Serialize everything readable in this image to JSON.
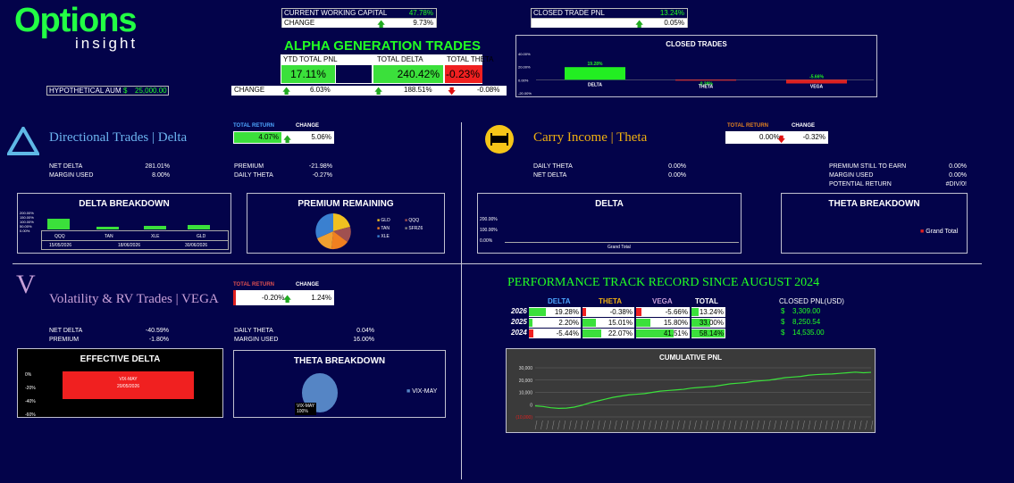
{
  "logo": {
    "main": "Options",
    "sub": "insight"
  },
  "hypothetical_aum": {
    "label": "HYPOTHETICAL AUM",
    "currency": "$",
    "value": "25,000.00"
  },
  "working_capital": {
    "label": "CURRENT WORKING CAPITAL",
    "value": "47.78%",
    "change_label": "CHANGE",
    "change": "9.73%"
  },
  "closed_trade_pnl": {
    "label": "CLOSED TRADE PNL",
    "value": "13.24%",
    "change": "0.05%"
  },
  "alpha": {
    "title": "ALPHA GENERATION TRADES",
    "headers": [
      "YTD TOTAL PNL",
      "TOTAL DELTA",
      "TOTAL THETA"
    ],
    "values": [
      "17.11%",
      "240.42%",
      "-0.23%"
    ],
    "change_label": "CHANGE",
    "changes": [
      "6.03%",
      "188.51%",
      "-0.08%"
    ]
  },
  "closed_trades_chart": {
    "title": "CLOSED TRADES",
    "yticks": [
      "40.00%",
      "20.00%",
      "0.00%",
      "-20.00%"
    ],
    "labels": [
      "DELTA",
      "THETA",
      "VEGA"
    ],
    "values_text": [
      "19.28%",
      "-0.38%",
      "-5.66%"
    ]
  },
  "delta_section": {
    "icon": "triangle-icon",
    "title": "Directional Trades | Delta",
    "total_return_label": "TOTAL RETURN",
    "total_return": "4.07%",
    "change_label": "CHANGE",
    "change": "5.06%",
    "stats_left": [
      [
        "NET DELTA",
        "281.01%"
      ],
      [
        "MARGIN USED",
        "8.00%"
      ]
    ],
    "stats_right": [
      [
        "PREMIUM",
        "-21.98%"
      ],
      [
        "DAILY THETA",
        "-0.27%"
      ]
    ],
    "breakdown": {
      "title": "DELTA BREAKDOWN",
      "yticks": [
        "200.00%",
        "150.00%",
        "100.00%",
        "50.00%",
        "0.00%"
      ],
      "bars": [
        "QQQ",
        "TAN",
        "XLE",
        "GLD"
      ],
      "dates": [
        "15/05/2026",
        "18/06/2026",
        "30/06/2026"
      ]
    },
    "premium": {
      "title": "PREMIUM REMAINING",
      "legend": [
        "GLD",
        "QQQ",
        "TAN",
        "SFRZ6",
        "XLE"
      ]
    }
  },
  "theta_section": {
    "title": "Carry Income | Theta",
    "total_return_label": "TOTAL RETURN",
    "total_return": "0.00%",
    "change_label": "CHANGE",
    "change": "-0.32%",
    "stats_left": [
      [
        "DAILY THETA",
        "0.00%"
      ],
      [
        "NET DELTA",
        "0.00%"
      ]
    ],
    "stats_right": [
      [
        "PREMIUM STILL TO EARN",
        "0.00%"
      ],
      [
        "MARGIN USED",
        "0.00%"
      ],
      [
        "POTENTIAL RETURN",
        "#DIV/0!"
      ]
    ],
    "delta_chart": {
      "title": "DELTA",
      "yticks": [
        "200.00%",
        "100.00%",
        "0.00%"
      ],
      "xlabel": "Grand Total"
    },
    "breakdown": {
      "title": "THETA BREAKDOWN",
      "legend": "Grand Total"
    }
  },
  "vega_section": {
    "icon_letter": "V",
    "title": "Volatility & RV Trades | VEGA",
    "total_return_label": "TOTAL RETURN",
    "total_return": "-0.20%",
    "change_label": "CHANGE",
    "change": "1.24%",
    "stats_left": [
      [
        "NET DELTA",
        "-40.59%"
      ],
      [
        "PREMIUM",
        "-1.80%"
      ]
    ],
    "stats_right": [
      [
        "DAILY THETA",
        "0.04%"
      ],
      [
        "MARGIN USED",
        "16.00%"
      ]
    ],
    "effective_delta": {
      "title": "EFFECTIVE DELTA",
      "yticks": [
        "0%",
        "-20%",
        "-40%",
        "-60%"
      ],
      "bar_label": "VIX-MAY",
      "bar_date": "20/05/2026"
    },
    "theta_breakdown": {
      "title": "THETA BREAKDOWN",
      "slice_label": "VIX-MAY",
      "slice_value": "100%",
      "legend": "VIX-MAY"
    }
  },
  "performance": {
    "title": "PERFORMANCE TRACK RECORD SINCE AUGUST 2024",
    "headers": [
      "DELTA",
      "THETA",
      "VEGA",
      "TOTAL"
    ],
    "closed_header": "CLOSED PNL(USD)",
    "rows": [
      {
        "year": "2026",
        "values": [
          "19.28%",
          "-0.38%",
          "-5.66%",
          "13.24%"
        ],
        "pnl": "3,309.00"
      },
      {
        "year": "2025",
        "values": [
          "2.20%",
          "15.01%",
          "15.80%",
          "33.00%"
        ],
        "pnl": "8,250.54"
      },
      {
        "year": "2024",
        "values": [
          "-5.44%",
          "22.07%",
          "41.51%",
          "58.14%"
        ],
        "pnl": "14,535.00"
      }
    ],
    "currency": "$"
  },
  "cumulative_pnl": {
    "title": "CUMULATIVE PNL",
    "yticks": [
      "30,000",
      "20,000",
      "10,000",
      "0",
      "(10,000)"
    ]
  },
  "chart_data": [
    {
      "type": "bar",
      "title": "CLOSED TRADES",
      "categories": [
        "DELTA",
        "THETA",
        "VEGA"
      ],
      "values": [
        19.28,
        -0.38,
        -5.66
      ],
      "ylim": [
        -20,
        40
      ]
    },
    {
      "type": "line",
      "title": "CUMULATIVE PNL",
      "ylim": [
        -10000,
        30000
      ],
      "values": [
        -1000,
        -1500,
        -2500,
        -3000,
        -2800,
        -2000,
        -500,
        1500,
        3000,
        4500,
        6000,
        7000,
        8000,
        8500,
        9000,
        10000,
        11000,
        11500,
        12000,
        12500,
        13500,
        14000,
        14500,
        15000,
        16000,
        17000,
        17500,
        18000,
        19000,
        19500,
        20000,
        21000,
        22000,
        22500,
        23000,
        24000,
        24500,
        24800,
        25000,
        25500,
        26000,
        26500,
        26000,
        26300
      ]
    }
  ]
}
